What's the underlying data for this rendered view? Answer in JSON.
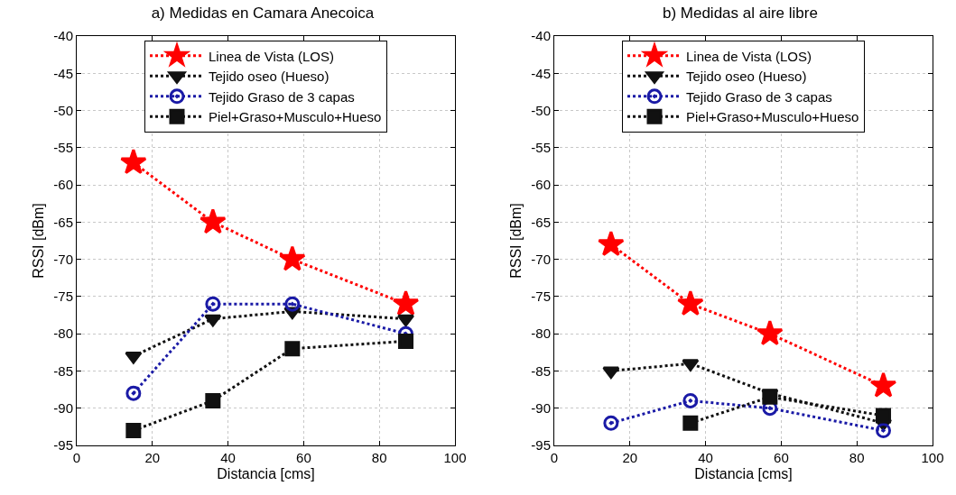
{
  "chart_data": [
    {
      "type": "line",
      "title": "a) Medidas en Camara Anecoica",
      "xlabel": "Distancia [cms]",
      "ylabel": "RSSI [dBm]",
      "x": [
        15,
        36,
        57,
        87
      ],
      "xlim": [
        0,
        100
      ],
      "xticks": [
        0,
        20,
        40,
        60,
        80,
        100
      ],
      "ylim": [
        -95,
        -40
      ],
      "yticks": [
        -95,
        -90,
        -85,
        -80,
        -75,
        -70,
        -65,
        -60,
        -55,
        -50,
        -45,
        -40
      ],
      "grid": true,
      "legend": "top",
      "line_style": "dotted",
      "series": [
        {
          "name": "Linea de Vista (LOS)",
          "color": "#ff0000",
          "marker": "star",
          "values": [
            -57,
            -65,
            -70,
            -76
          ]
        },
        {
          "name": "Tejido oseo (Hueso)",
          "color": "#111111",
          "marker": "triangle",
          "values": [
            -83,
            -78,
            -77,
            -78
          ]
        },
        {
          "name": "Tejido Graso de 3 capas",
          "color": "#1a1aa6",
          "marker": "circle",
          "values": [
            -88,
            -76,
            -76,
            -80
          ]
        },
        {
          "name": "Piel+Graso+Musculo+Hueso",
          "color": "#111111",
          "marker": "square",
          "values": [
            -93,
            -89,
            -82,
            -81
          ]
        }
      ]
    },
    {
      "type": "line",
      "title": "b) Medidas al aire libre",
      "xlabel": "Distancia [cms]",
      "ylabel": "RSSI [dBm]",
      "x": [
        15,
        36,
        57,
        87
      ],
      "xlim": [
        0,
        100
      ],
      "xticks": [
        0,
        20,
        40,
        60,
        80,
        100
      ],
      "ylim": [
        -95,
        -40
      ],
      "yticks": [
        -95,
        -90,
        -85,
        -80,
        -75,
        -70,
        -65,
        -60,
        -55,
        -50,
        -45,
        -40
      ],
      "grid": true,
      "legend": "top",
      "line_style": "dotted",
      "series": [
        {
          "name": "Linea de Vista (LOS)",
          "color": "#ff0000",
          "marker": "star",
          "values": [
            -68,
            -76,
            -80,
            -87
          ]
        },
        {
          "name": "Tejido oseo (Hueso)",
          "color": "#111111",
          "marker": "triangle",
          "values": [
            -85,
            -84,
            -88,
            -92
          ]
        },
        {
          "name": "Tejido Graso de 3 capas",
          "color": "#1a1aa6",
          "marker": "circle",
          "values": [
            -92,
            -89,
            -90,
            -93
          ]
        },
        {
          "name": "Piel+Graso+Musculo+Hueso",
          "color": "#111111",
          "marker": "square",
          "values": [
            null,
            -92,
            -88.5,
            -91
          ]
        }
      ]
    }
  ]
}
